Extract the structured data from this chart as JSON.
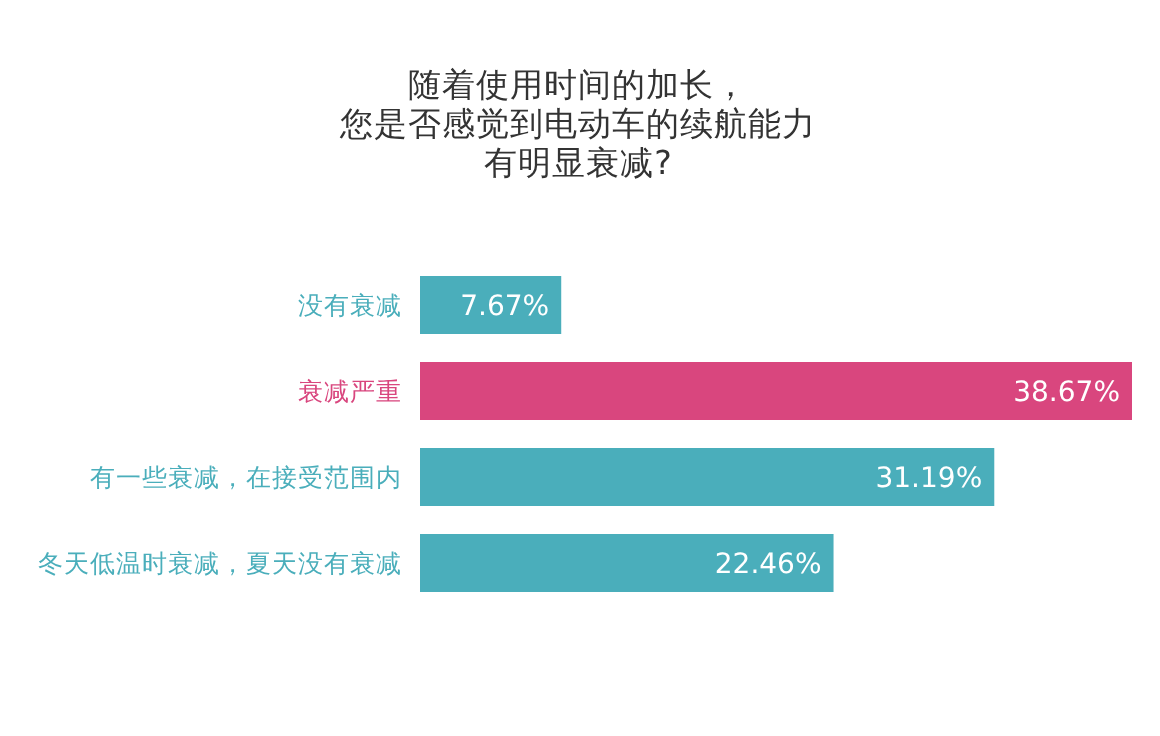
{
  "chart_data": {
    "type": "bar",
    "orientation": "horizontal",
    "title": "随着使用时间的加长，您是否感觉到电动车的续航能力有明显衰减?",
    "categories": [
      "没有衰减",
      "衰减严重",
      "有一些衰减，在接受范围内",
      "冬天低温时衰减，夏天没有衰减"
    ],
    "values": [
      7.67,
      38.67,
      31.19,
      22.46
    ],
    "colors": [
      "#4aaebb",
      "#d9467e",
      "#4aaebb",
      "#4aaebb"
    ],
    "value_labels": [
      "7.67%",
      "38.67%",
      "31.19%",
      "22.46%"
    ]
  }
}
